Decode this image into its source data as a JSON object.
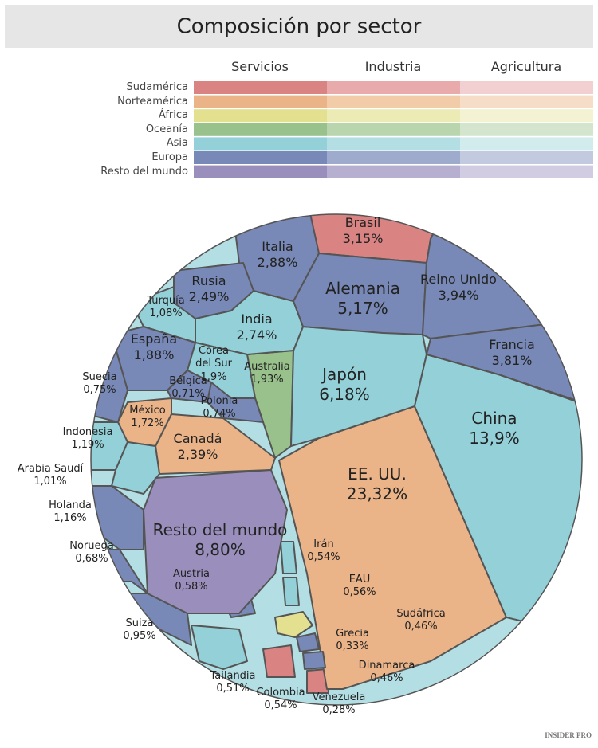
{
  "chart_data": {
    "type": "voronoi-treemap",
    "title": "Composición por sector",
    "sectors": [
      "Servicios",
      "Industria",
      "Agricultura"
    ],
    "series": [
      {
        "name": "Sudamérica",
        "colors": [
          "#d98383",
          "#e8aaaa",
          "#f2cfd0"
        ],
        "categories": [
          "Brasil",
          "Colombia",
          "Venezuela"
        ],
        "values": [
          3.15,
          0.54,
          0.28
        ],
        "value_labels": [
          "3,15%",
          "0,54%",
          "0,28%"
        ]
      },
      {
        "name": "Norteamérica",
        "colors": [
          "#eab388",
          "#f2cba9",
          "#f6ddc8"
        ],
        "categories": [
          "EE. UU.",
          "Canadá",
          "México"
        ],
        "values": [
          23.32,
          2.39,
          1.72
        ],
        "value_labels": [
          "23,32%",
          "2,39%",
          "1,72%"
        ]
      },
      {
        "name": "África",
        "colors": [
          "#e3e08f",
          "#ecebb5",
          "#f3f2d2"
        ],
        "categories": [
          "Sudáfrica"
        ],
        "values": [
          0.46
        ],
        "value_labels": [
          "0,46%"
        ]
      },
      {
        "name": "Oceanía",
        "colors": [
          "#98c18b",
          "#b9d5ae",
          "#d3e5cc"
        ],
        "categories": [
          "Australia"
        ],
        "values": [
          1.93
        ],
        "value_labels": [
          "1,93%"
        ]
      },
      {
        "name": "Asia",
        "colors": [
          "#93d0d8",
          "#b3dfe4",
          "#d2ecee"
        ],
        "categories": [
          "Japón",
          "China",
          "India",
          "Corea del Sur",
          "Indonesia",
          "Turquía",
          "Arabia Saudí",
          "Irán",
          "EAU",
          "Tailandia"
        ],
        "values": [
          6.18,
          13.9,
          2.74,
          1.9,
          1.19,
          1.08,
          1.01,
          0.54,
          0.56,
          0.51
        ],
        "value_labels": [
          "6,18%",
          "13,9%",
          "2,74%",
          "1,9%",
          "1,19%",
          "1,08%",
          "1,01%",
          "0,54%",
          "0,56%",
          "0,51%"
        ]
      },
      {
        "name": "Europa",
        "colors": [
          "#7889b7",
          "#9fabcc",
          "#c2cae0"
        ],
        "categories": [
          "Alemania",
          "Reino Unido",
          "Francia",
          "Italia",
          "Rusia",
          "España",
          "Suecia",
          "Bélgica",
          "Polonia",
          "Holanda",
          "Noruega",
          "Suiza",
          "Austria",
          "Grecia",
          "Dinamarca"
        ],
        "values": [
          5.17,
          3.94,
          3.81,
          2.88,
          2.49,
          1.88,
          0.75,
          0.71,
          0.74,
          1.16,
          0.68,
          0.95,
          0.58,
          0.33,
          0.46
        ],
        "value_labels": [
          "5,17%",
          "3,94%",
          "3,81%",
          "2,88%",
          "2,49%",
          "1,88%",
          "0,75%",
          "0,71%",
          "0,74%",
          "1,16%",
          "0,68%",
          "0,95%",
          "0,58%",
          "0,33%",
          "0,46%"
        ]
      },
      {
        "name": "Resto del mundo",
        "colors": [
          "#9a8fbc",
          "#b6afd0",
          "#d1cce2"
        ],
        "categories": [
          "Resto del mundo"
        ],
        "values": [
          8.8
        ],
        "value_labels": [
          "8,80%"
        ]
      }
    ],
    "logo": "INSIDER PRO"
  }
}
